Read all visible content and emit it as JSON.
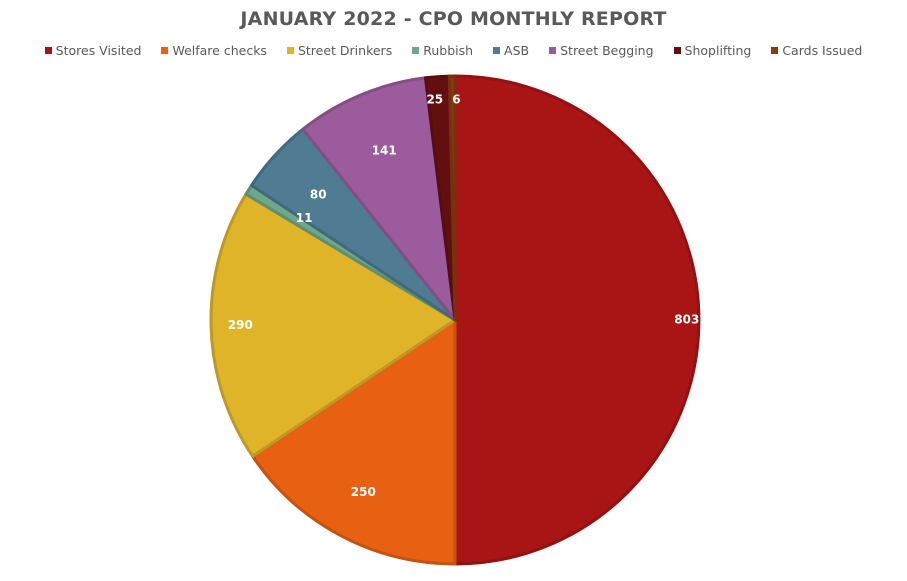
{
  "chart_data": {
    "type": "pie",
    "title": "JANUARY 2022 - CPO MONTHLY REPORT",
    "legend_position": "top",
    "categories": [
      "Stores Visited",
      "Welfare checks",
      "Street Drinkers",
      "Rubbish",
      "ASB",
      "Street Begging",
      "Shoplifting",
      "Cards Issued"
    ],
    "values": [
      803,
      250,
      290,
      11,
      80,
      141,
      25,
      6
    ],
    "colors": [
      "#A91515",
      "#E86012",
      "#E0B429",
      "#6CA88A",
      "#4F7C93",
      "#9C5B9D",
      "#640F0F",
      "#8B3A10"
    ],
    "start_angle": "12 o'clock",
    "direction": "clockwise"
  }
}
